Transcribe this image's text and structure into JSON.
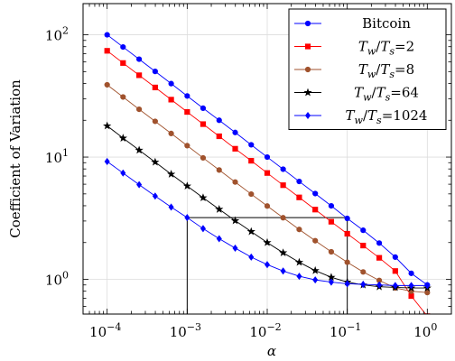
{
  "chart_data": {
    "type": "line",
    "xlabel": "α",
    "ylabel": "Coefficient of Variation",
    "x_scale": "log",
    "y_scale": "log",
    "xlim": [
      5e-05,
      2
    ],
    "ylim": [
      0.52,
      180
    ],
    "grid": true,
    "legend_position": "top-right",
    "x_ticks": [
      {
        "value": 0.0001,
        "base": "10",
        "exp": "−4"
      },
      {
        "value": 0.001,
        "base": "10",
        "exp": "−3"
      },
      {
        "value": 0.01,
        "base": "10",
        "exp": "−2"
      },
      {
        "value": 0.1,
        "base": "10",
        "exp": "−1"
      },
      {
        "value": 1,
        "base": "10",
        "exp": "0"
      }
    ],
    "y_ticks": [
      {
        "value": 1,
        "base": "10",
        "exp": "0"
      },
      {
        "value": 10,
        "base": "10",
        "exp": "1"
      },
      {
        "value": 100,
        "base": "10",
        "exp": "2"
      }
    ],
    "x": [
      0.0001,
      0.000158,
      0.000251,
      0.000398,
      0.000631,
      0.001,
      0.00158,
      0.00251,
      0.00398,
      0.00631,
      0.01,
      0.0158,
      0.0251,
      0.0398,
      0.0631,
      0.1,
      0.158,
      0.251,
      0.398,
      0.631,
      1
    ],
    "series": [
      {
        "name": "Bitcoin",
        "label": {
          "kind": "plain",
          "text": "Bitcoin"
        },
        "color": "#0000ff",
        "marker": "circle",
        "values": [
          100,
          79.5,
          63.2,
          50.2,
          39.9,
          31.6,
          25.1,
          20.0,
          15.9,
          12.6,
          10.0,
          7.96,
          6.32,
          5.03,
          3.99,
          3.15,
          2.52,
          1.98,
          1.52,
          1.12,
          0.9
        ]
      },
      {
        "name": "Tw/Ts=2",
        "label": {
          "kind": "ratio",
          "num": "T",
          "num_sub": "w",
          "den": "T",
          "den_sub": "s",
          "value": "2"
        },
        "color": "#ff0000",
        "marker": "square",
        "values": [
          74,
          58.8,
          46.7,
          37.1,
          29.5,
          23.4,
          18.6,
          14.8,
          11.7,
          9.33,
          7.41,
          5.89,
          4.68,
          3.72,
          2.96,
          2.36,
          1.89,
          1.5,
          1.17,
          0.73,
          0.5
        ]
      },
      {
        "name": "Tw/Ts=8",
        "label": {
          "kind": "ratio",
          "num": "T",
          "num_sub": "w",
          "den": "T",
          "den_sub": "s",
          "value": "8"
        },
        "color": "#a0522d",
        "marker": "circle",
        "values": [
          39,
          31.0,
          24.6,
          19.6,
          15.6,
          12.4,
          9.85,
          7.84,
          6.25,
          4.98,
          3.98,
          3.19,
          2.56,
          2.07,
          1.68,
          1.38,
          1.15,
          0.98,
          0.85,
          0.8,
          0.78
        ]
      },
      {
        "name": "Tw/Ts=64",
        "label": {
          "kind": "ratio",
          "num": "T",
          "num_sub": "w",
          "den": "T",
          "den_sub": "s",
          "value": "64"
        },
        "color": "#000000",
        "marker": "star",
        "values": [
          18,
          14.3,
          11.4,
          9.1,
          7.25,
          5.8,
          4.65,
          3.74,
          3.02,
          2.46,
          2.0,
          1.65,
          1.38,
          1.18,
          1.04,
          0.95,
          0.9,
          0.87,
          0.86,
          0.85,
          0.85
        ]
      },
      {
        "name": "Tw/Ts=1024",
        "label": {
          "kind": "ratio",
          "num": "T",
          "num_sub": "w",
          "den": "T",
          "den_sub": "s",
          "value": "1024"
        },
        "color": "#0000ff",
        "marker": "diamond",
        "values": [
          9.2,
          7.4,
          5.95,
          4.8,
          3.9,
          3.2,
          2.6,
          2.15,
          1.8,
          1.52,
          1.32,
          1.17,
          1.06,
          0.99,
          0.95,
          0.92,
          0.91,
          0.9,
          0.89,
          0.89,
          0.89
        ]
      }
    ],
    "annotations": [
      {
        "type": "hline",
        "y": 3.2,
        "x_from": 0.001,
        "x_to": 0.1,
        "color": "#000000"
      },
      {
        "type": "vline",
        "x": 0.001,
        "y_from": 0.52,
        "y_to": 3.2,
        "color": "#000000"
      },
      {
        "type": "vline",
        "x": 0.1,
        "y_from": 0.52,
        "y_to": 3.2,
        "color": "#000000"
      }
    ]
  }
}
